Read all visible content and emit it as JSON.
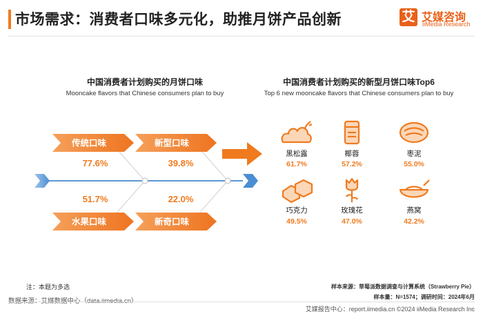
{
  "header": {
    "title": "市场需求：消费者口味多元化，助推月饼产品创新",
    "logo_mark": "艾",
    "logo_cn": "艾媒咨询",
    "logo_en": "iiMedia Research",
    "accent_color": "#f07a1e"
  },
  "left_section": {
    "title_cn": "中国消费者计划购买的月饼口味",
    "title_en": "Mooncake flavors that Chinese consumers plan to buy"
  },
  "right_section": {
    "title_cn": "中国消费者计划购买的新型月饼口味Top6",
    "title_en": "Top 6 new mooncake flavors that Chinese consumers plan to buy"
  },
  "chart_data": [
    {
      "type": "bar",
      "title": "中国消费者计划购买的月饼口味",
      "subtitle": "Mooncake flavors that Chinese consumers plan to buy",
      "categories": [
        "传统口味",
        "新型口味",
        "水果口味",
        "新奇口味"
      ],
      "values": [
        77.6,
        39.8,
        51.7,
        22.0
      ],
      "value_labels": [
        "77.6%",
        "39.8%",
        "51.7%",
        "22.0%"
      ],
      "unit": "%"
    },
    {
      "type": "bar",
      "title": "中国消费者计划购买的新型月饼口味Top6",
      "subtitle": "Top 6 new mooncake flavors that Chinese consumers plan to buy",
      "categories": [
        "黑松露",
        "椰蓉",
        "枣泥",
        "巧克力",
        "玫瑰花",
        "燕窝"
      ],
      "values": [
        61.7,
        57.2,
        55.0,
        49.5,
        47.0,
        42.2
      ],
      "value_labels": [
        "61.7%",
        "57.2%",
        "55.0%",
        "49.5%",
        "47.0%",
        "42.2%"
      ],
      "icons": [
        "truffle-icon",
        "coconut-icon",
        "date-paste-icon",
        "chocolate-icon",
        "rose-icon",
        "birds-nest-icon"
      ],
      "unit": "%"
    }
  ],
  "footer": {
    "note": "注：本题为多选",
    "source_left": "数据来源：艾媒数据中心（data.iimedia.cn）",
    "sample_source": "样本来源：草莓派数据调查与计算系统（Strawberry Pie）",
    "sample_size": "样本量：N=1574；调研时间：2024年6月",
    "copyright": "艾媒报告中心：report.iimedia.cn  ©2024  iiMedia Research  Inc"
  }
}
